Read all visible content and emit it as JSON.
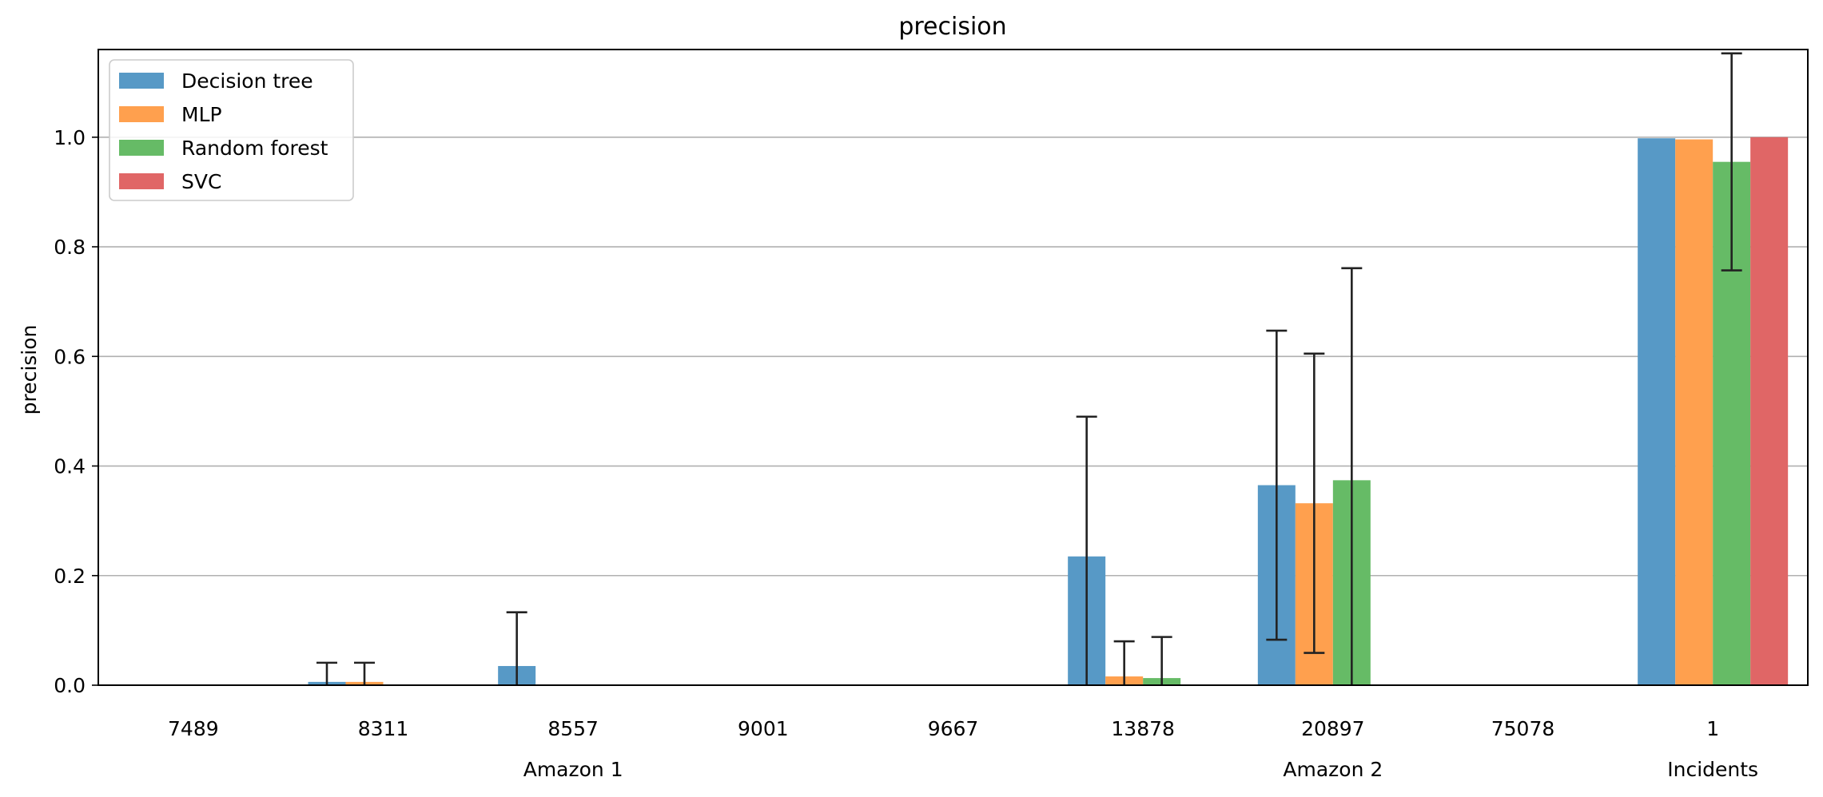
{
  "chart_data": {
    "type": "bar",
    "title": "precision",
    "xlabel": "",
    "ylabel": "precision",
    "ylim": [
      0,
      1.16
    ],
    "yticks": [
      "0.0",
      "0.2",
      "0.4",
      "0.6",
      "0.8",
      "1.0"
    ],
    "grid": "horizontal",
    "legend_placement": "top-left",
    "categories": [
      "7489",
      "8311",
      "8557",
      "9001",
      "9667",
      "13878",
      "20897",
      "75078",
      "1"
    ],
    "groups": [
      {
        "label": "Amazon 1",
        "categories": [
          "7489",
          "8311",
          "8557",
          "9001",
          "9667"
        ]
      },
      {
        "label": "Amazon 2",
        "categories": [
          "13878",
          "20897",
          "75078"
        ]
      },
      {
        "label": "Incidents",
        "categories": [
          "1"
        ]
      }
    ],
    "series": [
      {
        "name": "Decision tree",
        "color": "#5799c6",
        "values": [
          0,
          0.006,
          0.035,
          0,
          0,
          0.235,
          0.365,
          0,
          0.998
        ],
        "errors": [
          0,
          0.035,
          0.098,
          0,
          0,
          0.255,
          0.282,
          0,
          null
        ]
      },
      {
        "name": "MLP",
        "color": "#ffa04e",
        "values": [
          0,
          0.006,
          0,
          0,
          0,
          0.016,
          0.332,
          0,
          0.996
        ],
        "errors": [
          0,
          0.035,
          0,
          0,
          0,
          0.064,
          0.273,
          0,
          null
        ]
      },
      {
        "name": "Random forest",
        "color": "#66bb66",
        "values": [
          0,
          0,
          0,
          0,
          0,
          0.013,
          0.374,
          0,
          0.955
        ],
        "errors": [
          0,
          0,
          0,
          0,
          0,
          0.075,
          0.387,
          0,
          0.198
        ]
      },
      {
        "name": "SVC",
        "color": "#e06666",
        "values": [
          0,
          0,
          0,
          0,
          0,
          0,
          0,
          0,
          1.0
        ],
        "errors": [
          0,
          0,
          0,
          0,
          0,
          0,
          0,
          0,
          null
        ]
      }
    ]
  }
}
